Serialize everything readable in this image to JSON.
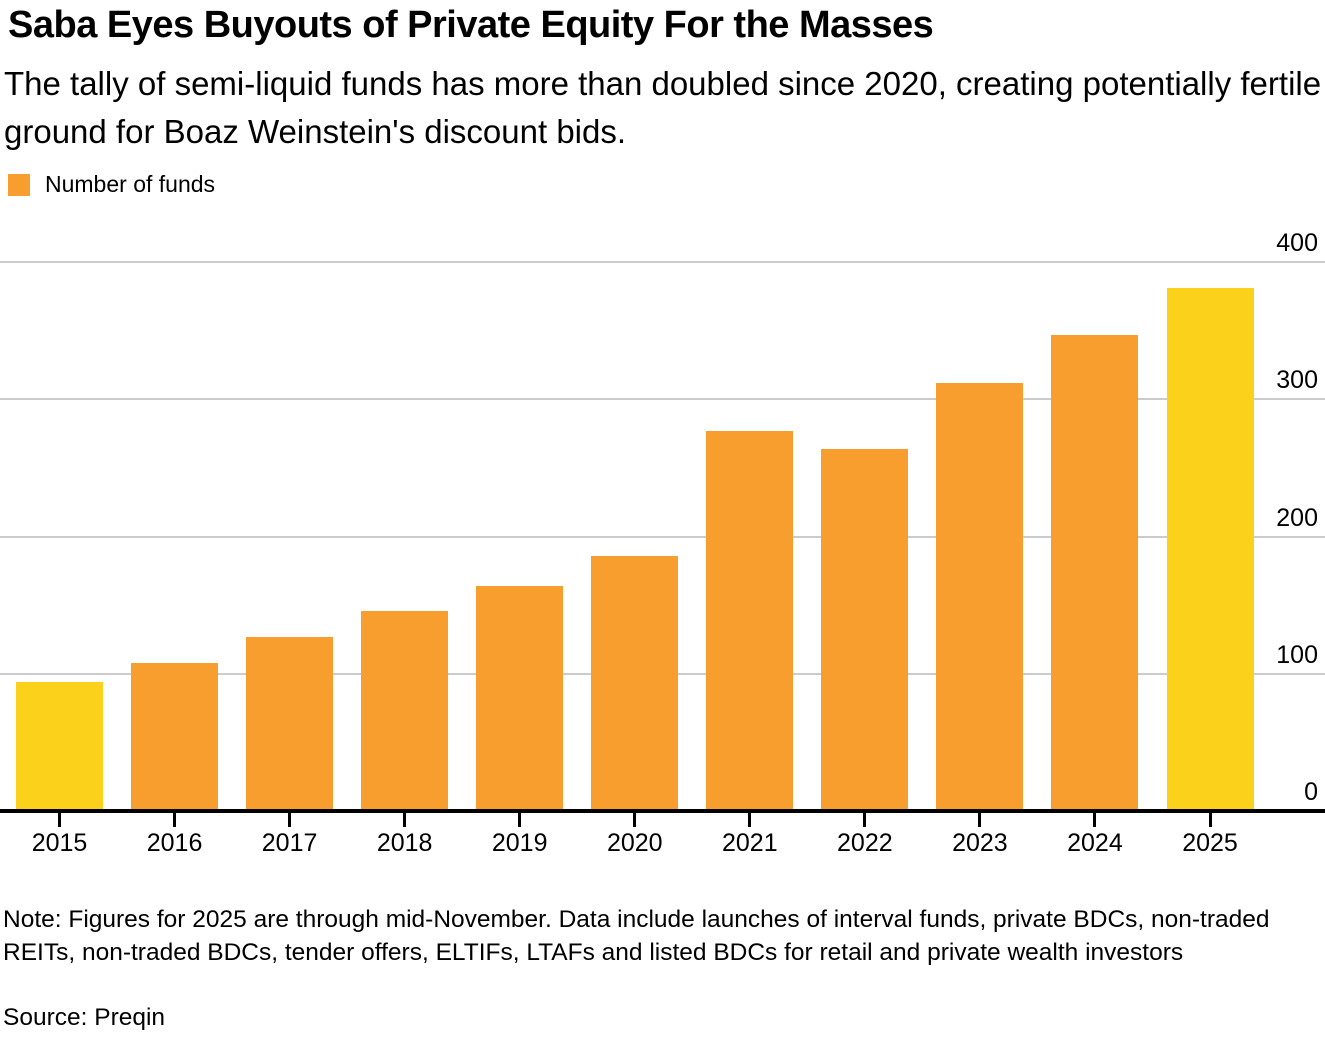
{
  "header": {
    "title": "Saba Eyes Buyouts of Private Equity For the Masses",
    "subtitle": "The tally of semi-liquid funds has more than doubled since 2020, creating potentially fertile ground for Boaz Weinstein's discount bids."
  },
  "legend": {
    "label": "Number of funds"
  },
  "chart_data": {
    "type": "bar",
    "title": "Saba Eyes Buyouts of Private Equity For the Masses",
    "subtitle": "The tally of semi-liquid funds has more than doubled since 2020, creating potentially fertile ground for Boaz Weinstein's discount bids.",
    "legend_entries": [
      "Number of funds"
    ],
    "legend_position": "top-left",
    "categories": [
      "2015",
      "2016",
      "2017",
      "2018",
      "2019",
      "2020",
      "2021",
      "2022",
      "2023",
      "2024",
      "2025"
    ],
    "values": [
      94,
      108,
      127,
      146,
      164,
      186,
      277,
      264,
      312,
      347,
      381
    ],
    "highlighted_categories": [
      "2015",
      "2025"
    ],
    "colors": {
      "bar": "#F79E2E",
      "highlight": "#FCD11B",
      "gridline": "#CBCBCB",
      "axis": "#000000",
      "text": "#000000"
    },
    "xlabel": "",
    "ylabel": "",
    "ylim": [
      0,
      400
    ],
    "yticks": [
      0,
      100,
      200,
      300,
      400
    ],
    "y_axis_side": "right",
    "grid": "horizontal"
  },
  "footer": {
    "note": "Note: Figures for 2025 are through mid-November. Data include launches of interval funds, private BDCs, non-traded REITs, non-traded BDCs, tender offers, ELTIFs, LTAFs and listed BDCs for retail and private wealth investors",
    "source": "Source: Preqin"
  }
}
